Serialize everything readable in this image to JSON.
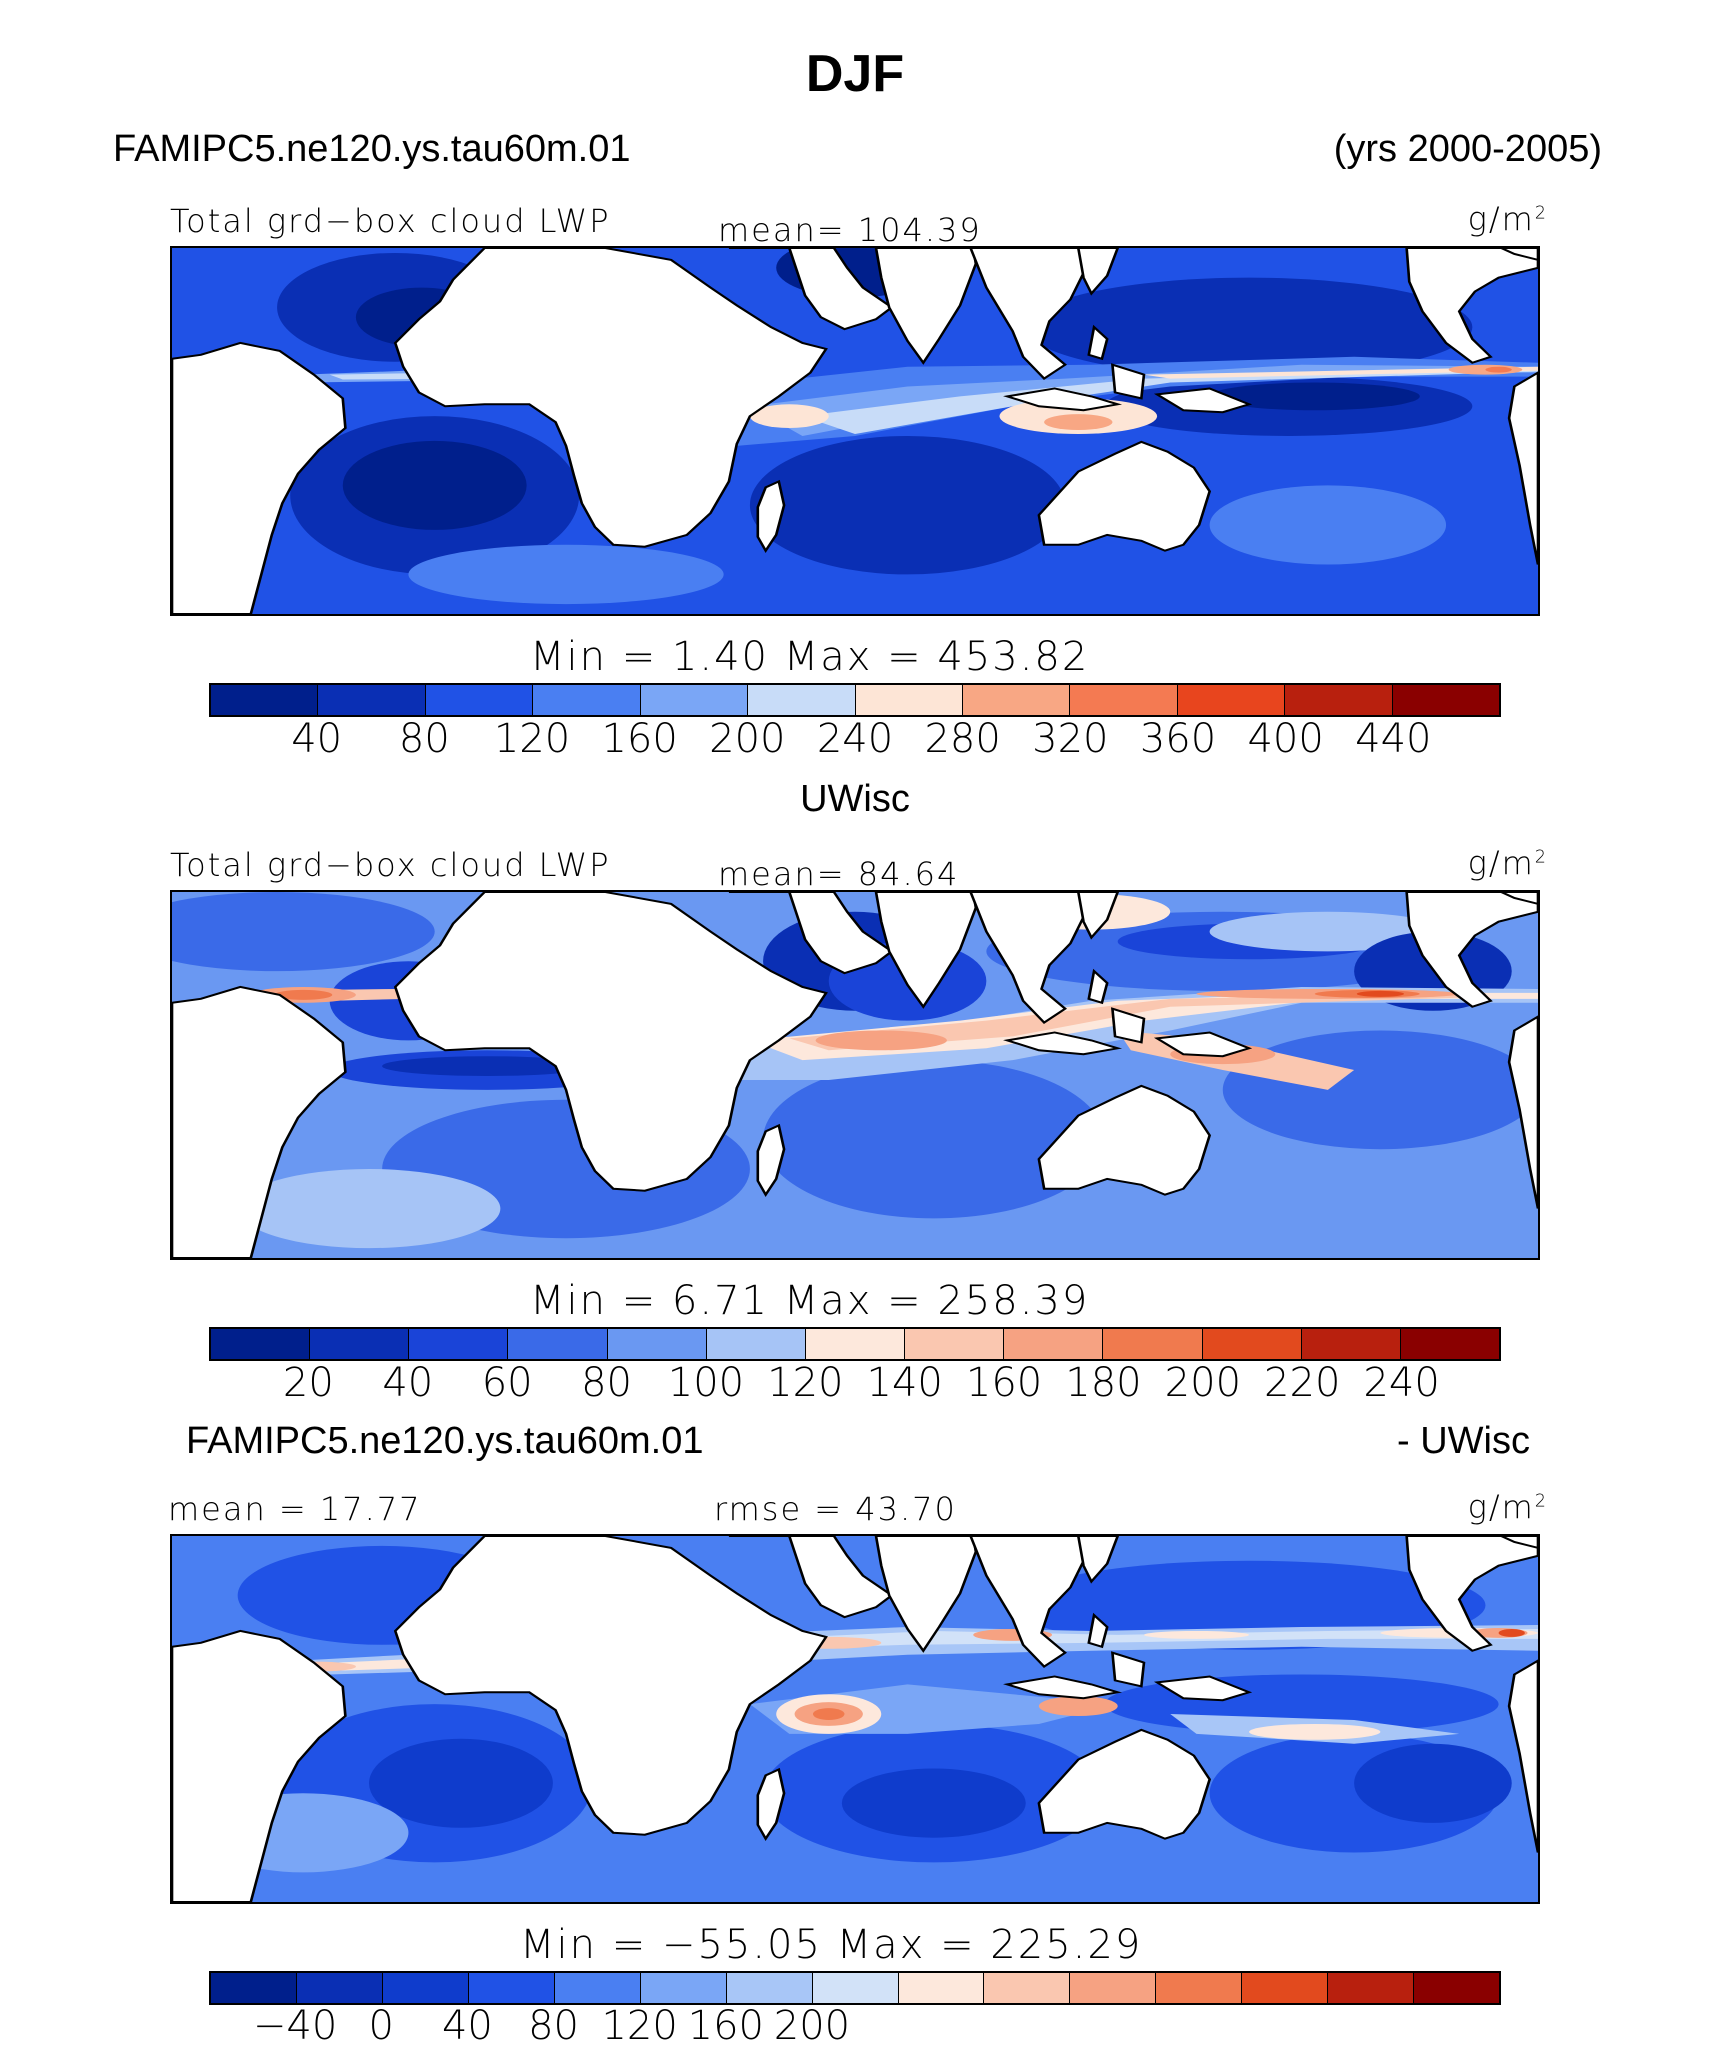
{
  "figure": {
    "title": "DJF",
    "case_label": "FAMIPC5.ne120.ys.tau60m.01",
    "years_label": "(yrs 2000-2005)"
  },
  "panels": [
    {
      "panel_title": "",
      "variable_label": "Total grd−box cloud LWP",
      "stat1_label": "mean=  104.39",
      "stat2_label": "",
      "units_base": "g/m",
      "units_exp": "2",
      "minmax_label": "Min  =     1.40  Max  =  453.82",
      "colorbar": {
        "colors": [
          "#001f8c",
          "#0a2fb4",
          "#2052e6",
          "#4a7ff2",
          "#7aa6f6",
          "#c8dcf8",
          "#fde5d6",
          "#f8a784",
          "#f47a52",
          "#e8451e",
          "#b8200e",
          "#8a0000"
        ],
        "ticks": [
          "40",
          "80",
          "120",
          "160",
          "200",
          "240",
          "280",
          "320",
          "360",
          "400",
          "440"
        ]
      }
    },
    {
      "panel_title": "UWisc",
      "variable_label": "Total grd−box cloud LWP",
      "stat1_label": "mean=   84.64",
      "stat2_label": "",
      "units_base": "g/m",
      "units_exp": "2",
      "minmax_label": "Min  =     6.71  Max  =  258.39",
      "colorbar": {
        "colors": [
          "#001f8c",
          "#0a2fb4",
          "#1a44d8",
          "#3a6ae8",
          "#6a98f2",
          "#a6c4f6",
          "#fde8dc",
          "#fac7b0",
          "#f6a282",
          "#f07a4e",
          "#e24a1e",
          "#b8200e",
          "#8a0000"
        ],
        "ticks": [
          "20",
          "40",
          "60",
          "80",
          "100",
          "120",
          "140",
          "160",
          "180",
          "200",
          "220",
          "240"
        ]
      }
    },
    {
      "panel_title": "FAMIPC5.ne120.ys.tau60m.01",
      "panel_title_right": "- UWisc",
      "variable_label": "",
      "stat1_label": "mean  =   17.77",
      "stat2_label": "rmse  =   43.70",
      "units_base": "g/m",
      "units_exp": "2",
      "minmax_label": "Min  =  −55.05  Max  =  225.29",
      "colorbar": {
        "colors": [
          "#001f8c",
          "#0a2fb4",
          "#0f3ccc",
          "#2052e6",
          "#4a7ff2",
          "#7aa6f6",
          "#a8c6f7",
          "#d2e2f8",
          "#fde8dc",
          "#fac7b0",
          "#f6a282",
          "#f07a4e",
          "#e24a1e",
          "#b8200e",
          "#8a0000"
        ],
        "ticks": [
          "−40",
          "0",
          "40",
          "80",
          "120",
          "160",
          "200"
        ]
      }
    }
  ]
}
